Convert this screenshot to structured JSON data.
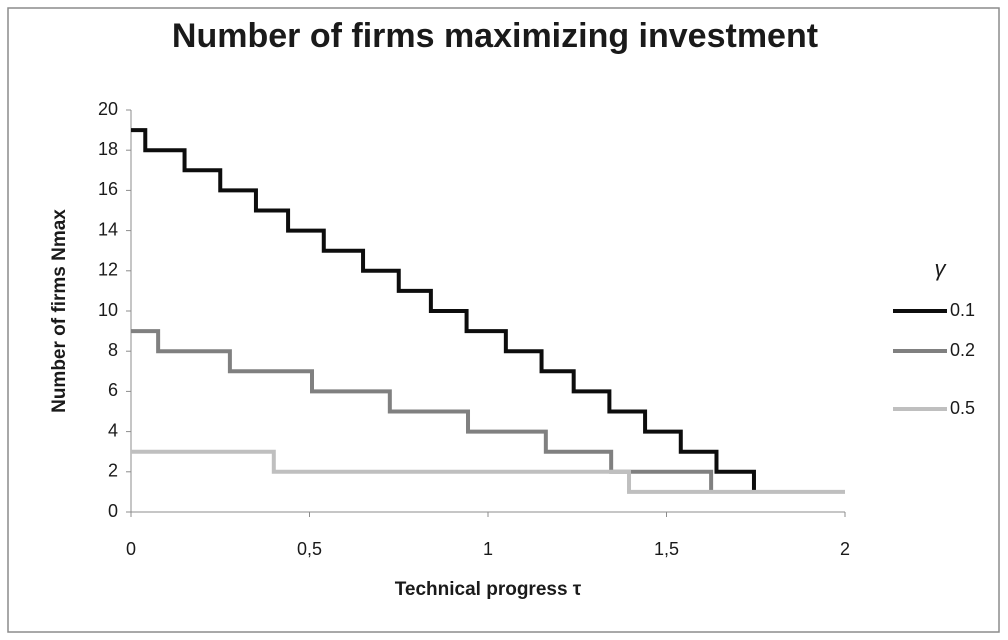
{
  "chart_data": {
    "type": "step",
    "title": "Number of firms maximizing investment",
    "xlabel": "Technical progress τ",
    "ylabel": "Number of firms Nmax",
    "legend_title": "γ",
    "legend": "right",
    "grid": false,
    "xlim": [
      0,
      2
    ],
    "xticks": [
      0,
      {
        "value": 0.5,
        "label": "0,5"
      },
      1,
      {
        "value": 1.5,
        "label": "1,5"
      },
      2
    ],
    "ylim": [
      0,
      20
    ],
    "yticks": [
      0,
      2,
      4,
      6,
      8,
      10,
      12,
      14,
      16,
      18,
      20
    ],
    "series": [
      {
        "name": "0.1",
        "color": "#0d0d0d",
        "x": [
          0,
          0.04,
          0.15,
          0.25,
          0.35,
          0.44,
          0.54,
          0.65,
          0.75,
          0.84,
          0.94,
          1.05,
          1.15,
          1.24,
          1.34,
          1.44,
          1.54,
          1.64,
          1.745
        ],
        "values": [
          19,
          18,
          17,
          16,
          15,
          14,
          13,
          12,
          11,
          10,
          9,
          8,
          7,
          6,
          5,
          4,
          3,
          2,
          1
        ]
      },
      {
        "name": "0.2",
        "color": "#808080",
        "x": [
          0,
          0.076,
          0.277,
          0.507,
          0.725,
          0.944,
          1.162,
          1.345,
          1.625
        ],
        "values": [
          9,
          8,
          7,
          6,
          5,
          4,
          3,
          2,
          1
        ]
      },
      {
        "name": "0.5",
        "color": "#bfbfbf",
        "x": [
          0,
          0.4,
          1.395,
          2
        ],
        "values": [
          3,
          2,
          1,
          1
        ]
      }
    ]
  }
}
